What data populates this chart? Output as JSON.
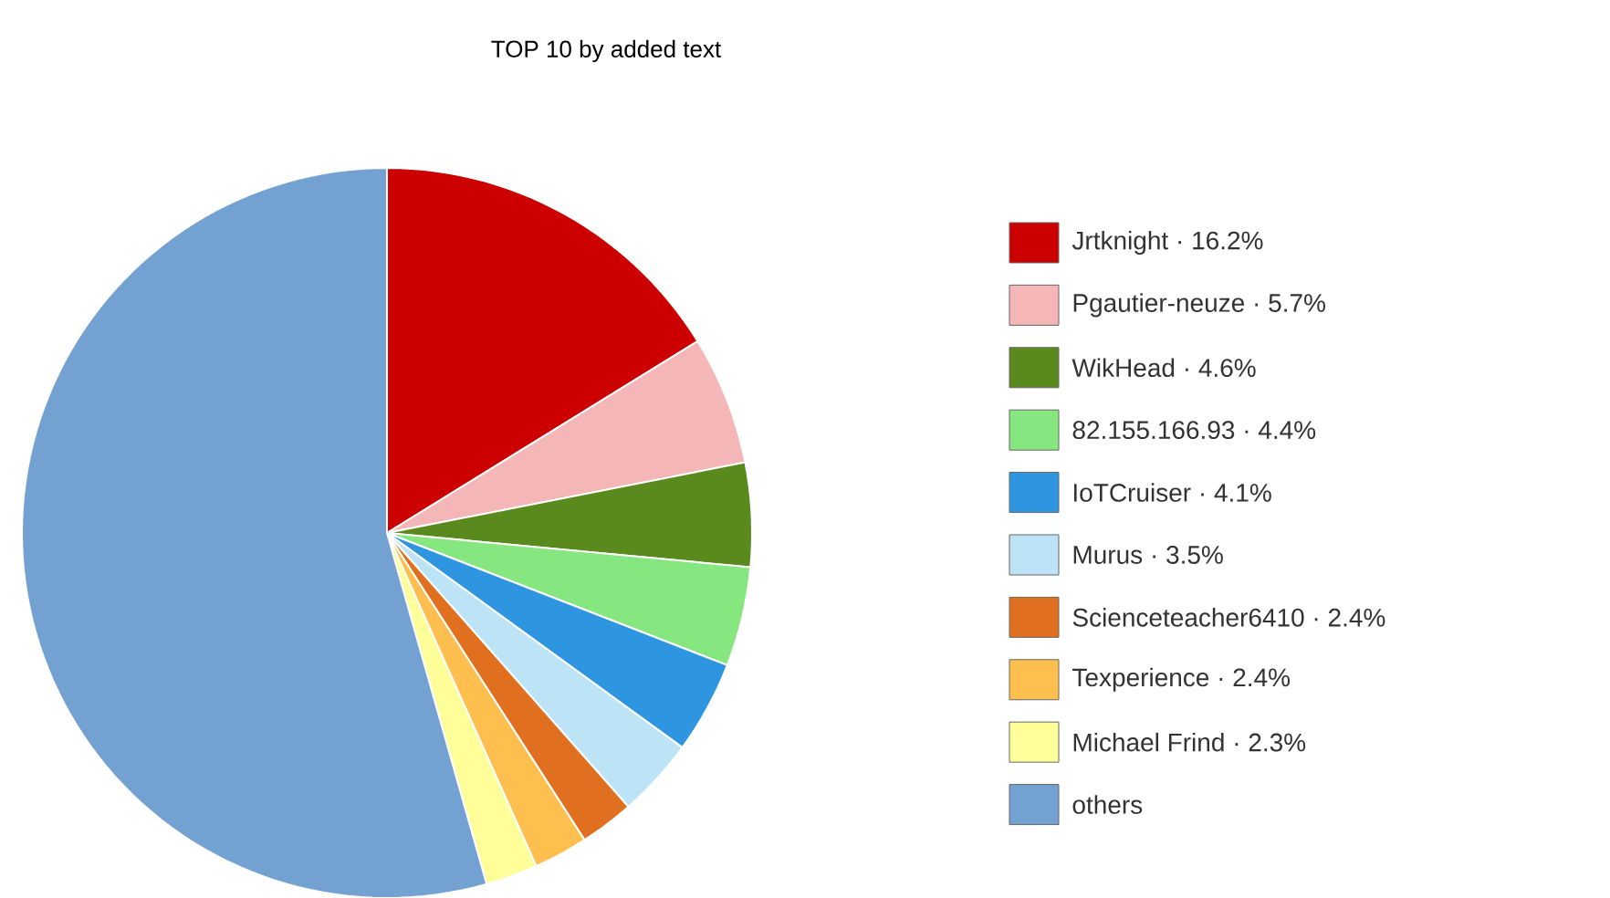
{
  "chart_data": {
    "type": "pie",
    "title": "TOP 10 by added text",
    "categories": [
      "Jrtknight · 16.2%",
      "Pgautier-neuze · 5.7%",
      "WikHead · 4.6%",
      "82.155.166.93 · 4.4%",
      "IoTCruiser · 4.1%",
      "Murus · 3.5%",
      "Scienceteacher6410 · 2.4%",
      "Texperience · 2.4%",
      "Michael Frind · 2.3%",
      "others"
    ],
    "values": [
      16.2,
      5.7,
      4.6,
      4.4,
      4.1,
      3.5,
      2.4,
      2.4,
      2.3,
      54.4
    ],
    "colors": [
      "#cc0000",
      "#f4b6b6",
      "#5a8a1e",
      "#86e67f",
      "#2e96e0",
      "#bde3f7",
      "#e07020",
      "#ffbf4f",
      "#ffff99",
      "#73a2d2"
    ],
    "legend": "right"
  }
}
